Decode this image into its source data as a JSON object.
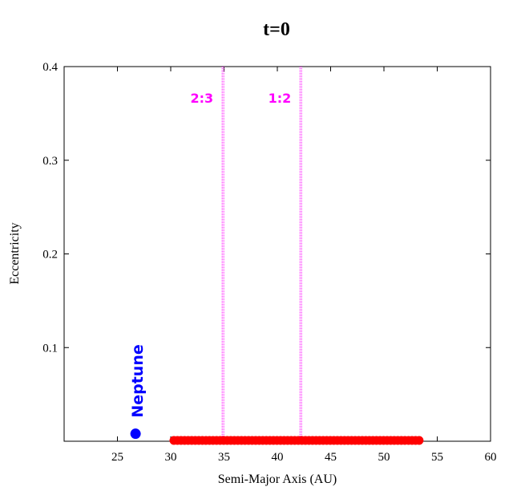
{
  "chart_data": {
    "type": "scatter",
    "title": "t=0",
    "xlabel": "Semi-Major Axis (AU)",
    "ylabel": "Eccentricity",
    "xlim": [
      20,
      60
    ],
    "ylim": [
      0,
      0.4
    ],
    "x_ticks": [
      {
        "value": 25,
        "label": "25"
      },
      {
        "value": 30,
        "label": "30"
      },
      {
        "value": 35,
        "label": "35"
      },
      {
        "value": 40,
        "label": "40"
      },
      {
        "value": 45,
        "label": "45"
      },
      {
        "value": 50,
        "label": "50"
      },
      {
        "value": 55,
        "label": "55"
      },
      {
        "value": 60,
        "label": "60"
      }
    ],
    "y_ticks": [
      {
        "value": 0.1,
        "label": "0.1"
      },
      {
        "value": 0.2,
        "label": "0.2"
      },
      {
        "value": 0.3,
        "label": "0.3"
      },
      {
        "value": 0.4,
        "label": "0.4"
      }
    ],
    "grid": false,
    "resonances": [
      {
        "label": "2:3",
        "a": 34.9,
        "color": "#ff00ff"
      },
      {
        "label": "1:2",
        "a": 42.2,
        "color": "#ff00ff"
      }
    ],
    "planet": {
      "label": "Neptune",
      "a": 26.7,
      "e": 0.008,
      "color": "#0000ff"
    },
    "planetesimals": {
      "a_min": 30.3,
      "a_max": 53.3,
      "e": 0.0,
      "color": "#ff0000",
      "count": 70
    }
  }
}
